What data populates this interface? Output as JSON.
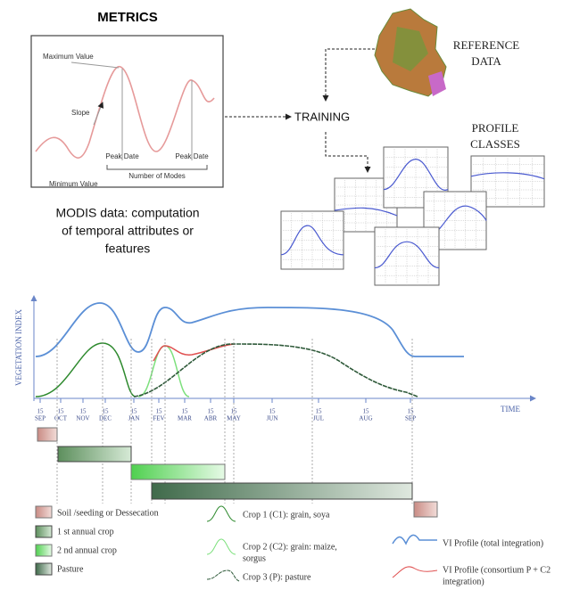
{
  "metrics": {
    "title": "METRICS",
    "maximum": "Maximum Value",
    "slope": "Slope",
    "minimum": "Minimum Value",
    "peak_1": "Peak Date",
    "peak_2": "Peak Date",
    "modes": "Number of Modes"
  },
  "caption": [
    "MODIS data: computation",
    "of temporal attributes or",
    "features"
  ],
  "reference": [
    "REFERENCE",
    "DATA"
  ],
  "training": "TRAINING",
  "profile_classes": [
    "PROFILE",
    "CLASSES"
  ],
  "timeline": {
    "y_label": "VEGETATION INDEX",
    "x_label": "TIME",
    "ticks": [
      {
        "day": "15",
        "month": "SEP"
      },
      {
        "day": "15",
        "month": "OCT"
      },
      {
        "day": "15",
        "month": "NOV"
      },
      {
        "day": "15",
        "month": "DEC"
      },
      {
        "day": "15",
        "month": "JAN"
      },
      {
        "day": "15",
        "month": "FEV"
      },
      {
        "day": "15",
        "month": "MAR"
      },
      {
        "day": "15",
        "month": "ABR"
      },
      {
        "day": "15",
        "month": "MAY"
      },
      {
        "day": "15",
        "month": "JUN"
      },
      {
        "day": "15",
        "month": "JUL"
      },
      {
        "day": "15",
        "month": "AUG"
      },
      {
        "day": "15",
        "month": "SEP"
      }
    ]
  },
  "legend": {
    "soil": "Soil /seeding or Dessecation",
    "crop1": "1 st annual crop",
    "crop2": "2 nd annual crop",
    "pasture": "Pasture",
    "c1": "Crop 1 (C1): grain, soya",
    "c2": [
      "Crop 2 (C2): grain: maize,",
      "sorgus"
    ],
    "c3": "Crop 3 (P): pasture",
    "vi_total": "VI Profile (total integration)",
    "vi_consortium": [
      "VI Profile (consortium P + C2",
      "integration)"
    ]
  }
}
